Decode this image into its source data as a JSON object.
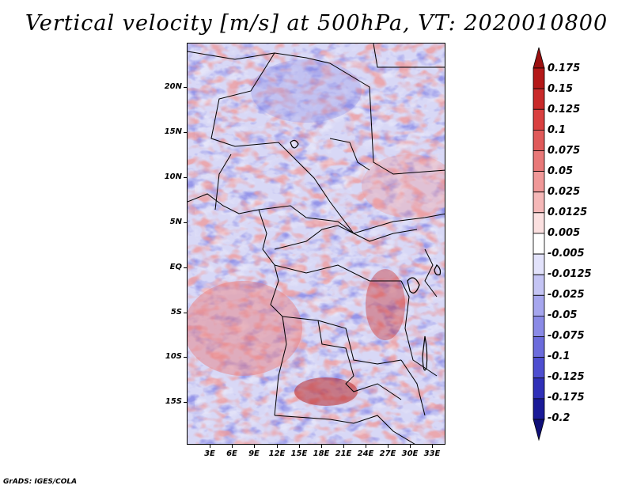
{
  "title": "Vertical velocity [m/s] at 500hPa, VT: 2020010800",
  "credit": "GrADS: IGES/COLA",
  "map": {
    "lat_labels": [
      "20N",
      "15N",
      "10N",
      "5N",
      "EQ",
      "5S",
      "10S",
      "15S"
    ],
    "lon_labels": [
      "3E",
      "6E",
      "9E",
      "12E",
      "15E",
      "18E",
      "21E",
      "24E",
      "27E",
      "30E",
      "33E"
    ]
  },
  "colorbar": {
    "labels": [
      "0.175",
      "0.15",
      "0.125",
      "0.1",
      "0.075",
      "0.05",
      "0.025",
      "0.0125",
      "0.005",
      "-0.005",
      "-0.0125",
      "-0.025",
      "-0.05",
      "-0.075",
      "-0.1",
      "-0.125",
      "-0.175",
      "-0.2"
    ],
    "colors": [
      "#9b1010",
      "#b41818",
      "#c92a2a",
      "#d94040",
      "#e05a5a",
      "#e87878",
      "#f09898",
      "#f5b8b8",
      "#fbe0e0",
      "#ffffff",
      "#e2e2fb",
      "#c4c4f4",
      "#a6a6ee",
      "#8a8ae6",
      "#6c6cdc",
      "#4e4ed0",
      "#3030b8",
      "#1a1a98",
      "#0f0f78"
    ]
  }
}
